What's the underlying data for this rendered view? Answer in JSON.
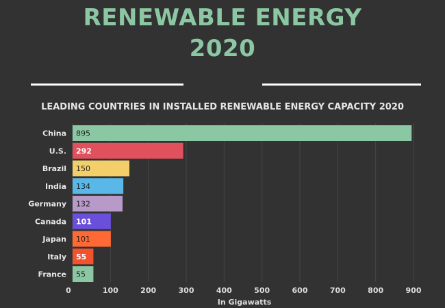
{
  "header": {
    "title_line_1": "RENEWABLE ENERGY",
    "title_line_2": "2020"
  },
  "chart_data": {
    "type": "bar",
    "orientation": "horizontal",
    "title": "LEADING COUNTRIES IN INSTALLED RENEWABLE ENERGY CAPACITY 2020",
    "xlabel": "In Gigawatts",
    "ylabel": "",
    "xlim": [
      0,
      900
    ],
    "xticks": [
      "0",
      "100",
      "200",
      "300",
      "400",
      "500",
      "600",
      "700",
      "800",
      "900"
    ],
    "categories": [
      "China",
      "U.S.",
      "Brazil",
      "India",
      "Germany",
      "Canada",
      "Japan",
      "Italy",
      "France"
    ],
    "values": [
      895,
      292,
      150,
      134,
      132,
      101,
      101,
      55,
      55
    ],
    "value_labels": [
      "895",
      "292",
      "150",
      "134",
      "132",
      "101",
      "101",
      "55",
      "55"
    ],
    "colors": [
      "#8cc7a3",
      "#e0515d",
      "#f3cf6a",
      "#5ab8e8",
      "#b79ac8",
      "#6a4fdb",
      "#ff6a34",
      "#f2532c",
      "#8cc7a3"
    ],
    "label_colors": [
      "#1e1e1e",
      "#ffffff",
      "#1e1e1e",
      "#1e1e1e",
      "#1e1e1e",
      "#ffffff",
      "#1e1e1e",
      "#ffffff",
      "#1e1e1e"
    ],
    "grid": true,
    "legend": "none"
  }
}
